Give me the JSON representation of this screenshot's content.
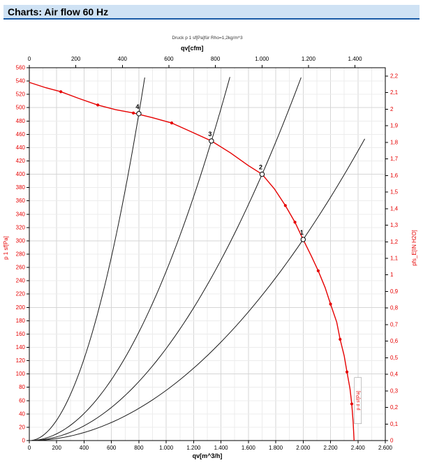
{
  "header": {
    "title": "Charts: Air flow 60 Hz"
  },
  "colors": {
    "red": "#e60000",
    "black_curve": "#1a1a1a",
    "header_bg": "#cfe2f4",
    "header_border": "#1a5ba6",
    "grid_minor": "#ececec",
    "grid_major": "#d6d6d6"
  },
  "chart_data": {
    "type": "line",
    "subtitle": "Druck p 1 sf[Pa]für Rho=1,2kg/m^3",
    "axes": {
      "bottom": {
        "label": "qv[m^3/h]",
        "min": 0,
        "max": 2600,
        "step": 200,
        "tick_labels": [
          "0",
          "200",
          "400",
          "600",
          "800",
          "1.000",
          "1.200",
          "1.400",
          "1.600",
          "1.800",
          "2.000",
          "2.200",
          "2.400",
          "2.600"
        ]
      },
      "top": {
        "label": "qv[cfm]",
        "min": 0,
        "max": 1400,
        "step": 200,
        "m3h_per_cfm": 1.699,
        "tick_labels": [
          "0",
          "200",
          "400",
          "600",
          "800",
          "1.000",
          "1.200",
          "1.400"
        ]
      },
      "left": {
        "label": "p 1 sf[Pa]",
        "min": 0,
        "max": 560,
        "step": 20
      },
      "right": {
        "label": "pfs_E[IN H2O]",
        "min": 0,
        "max": 2.2,
        "step": 0.1,
        "pa_per_unit": 248.84,
        "tick_labels": [
          "0",
          "0,1",
          "0,2",
          "0,3",
          "0,4",
          "0,5",
          "0,6",
          "0,7",
          "0,8",
          "0,9",
          "1",
          "1,1",
          "1,2",
          "1,3",
          "1,4",
          "1,5",
          "1,6",
          "1,7",
          "1,8",
          "1,9",
          "2",
          "2,1",
          "2,2"
        ]
      }
    },
    "grid": {
      "x_minor_step": 100,
      "x_major_step": 200,
      "y_minor_step": 20,
      "y_major_step": 100
    },
    "fan_curve": {
      "name": "fan-pressure-curve",
      "points": [
        [
          0,
          538
        ],
        [
          120,
          530
        ],
        [
          230,
          524
        ],
        [
          360,
          514
        ],
        [
          500,
          504
        ],
        [
          630,
          497
        ],
        [
          760,
          492
        ],
        [
          900,
          485
        ],
        [
          1040,
          477
        ],
        [
          1180,
          464
        ],
        [
          1330,
          450
        ],
        [
          1470,
          432
        ],
        [
          1600,
          413
        ],
        [
          1700,
          400
        ],
        [
          1790,
          378
        ],
        [
          1870,
          353
        ],
        [
          1940,
          328
        ],
        [
          2000,
          302
        ],
        [
          2060,
          277
        ],
        [
          2110,
          255
        ],
        [
          2160,
          230
        ],
        [
          2200,
          205
        ],
        [
          2245,
          178
        ],
        [
          2270,
          152
        ],
        [
          2300,
          127
        ],
        [
          2320,
          103
        ],
        [
          2342,
          78
        ],
        [
          2355,
          55
        ],
        [
          2365,
          28
        ],
        [
          2372,
          0
        ]
      ],
      "marker_points": [
        [
          230,
          524
        ],
        [
          500,
          504
        ],
        [
          760,
          492
        ],
        [
          1040,
          477
        ],
        [
          1330,
          450
        ],
        [
          1700,
          400
        ],
        [
          1870,
          353
        ],
        [
          1940,
          328
        ],
        [
          2000,
          302
        ],
        [
          2110,
          255
        ],
        [
          2200,
          205
        ],
        [
          2270,
          152
        ],
        [
          2320,
          103
        ],
        [
          2355,
          55
        ]
      ]
    },
    "system_curves": [
      {
        "name": "system-curve-1",
        "k": 7.55e-05,
        "q_max": 2450
      },
      {
        "name": "system-curve-2",
        "k": 0.0001384,
        "q_max": 1985
      },
      {
        "name": "system-curve-3",
        "k": 0.0002544,
        "q_max": 1465
      },
      {
        "name": "system-curve-4",
        "k": 0.0007672,
        "q_max": 843
      }
    ],
    "operating_points": [
      {
        "label": "1",
        "q": 2000,
        "p": 302
      },
      {
        "label": "2",
        "q": 1700,
        "p": 400
      },
      {
        "label": "3",
        "q": 1330,
        "p": 450
      },
      {
        "label": "4",
        "q": 800,
        "p": 491
      }
    ],
    "annotation": {
      "text": "p d sf[Pa]",
      "q": 2400,
      "p_center": 60
    }
  }
}
